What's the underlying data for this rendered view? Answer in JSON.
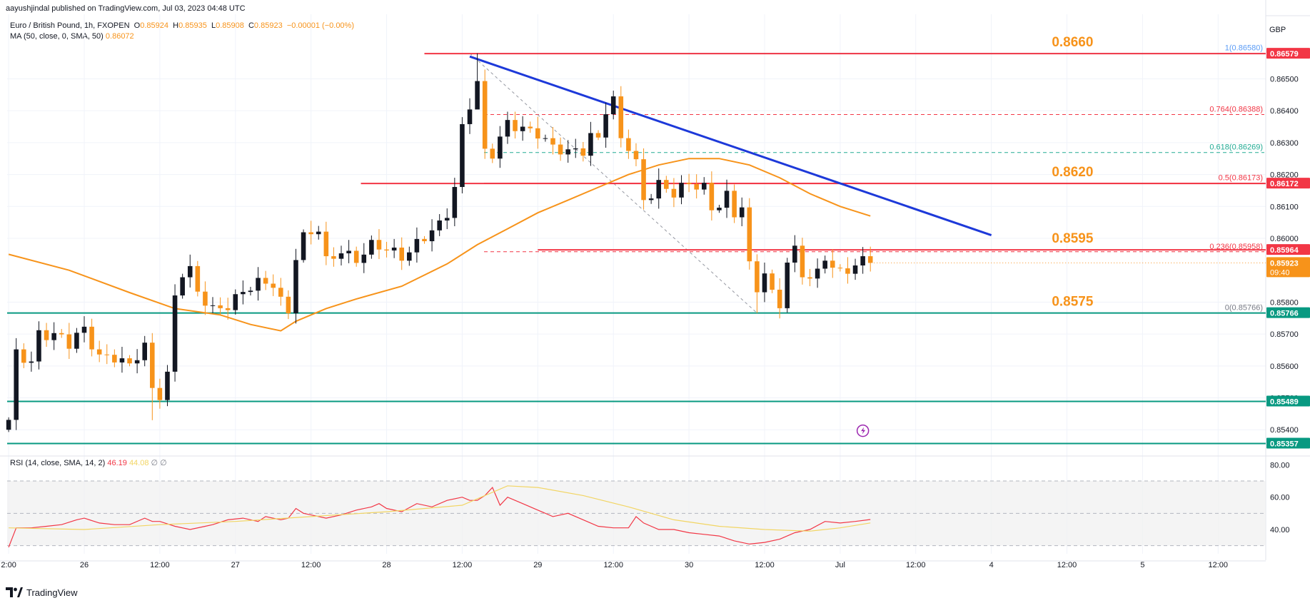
{
  "header": {
    "publisher": "aayushjindal published on TradingView.com, Jul 03, 2023 04:48 UTC",
    "symbol_line": "Euro / British Pound, 1h, FXOPEN",
    "ohlc": {
      "o_label": "O",
      "o": "0.85924",
      "h_label": "H",
      "h": "0.85935",
      "l_label": "L",
      "l": "0.85908",
      "c_label": "C",
      "c": "0.85923",
      "chg": "−0.00001 (−0.00%)"
    },
    "ma_label": "MA (50, close, 0, SMA, 50)",
    "ma_value": "0.86072",
    "rsi_label": "RSI (14, close, SMA, 14, 2)",
    "rsi_value": "46.19",
    "rsi_ma_value": "44.08",
    "rsi_extra": "∅  ∅"
  },
  "currency": "GBP",
  "watermark": "TradingView",
  "colors": {
    "up": "#131722",
    "down": "#f7931a",
    "ma": "#f7931a",
    "support": "#089981",
    "resistance": "#f23645",
    "trendline": "#1d39d9",
    "level_text": "#f7931a",
    "rsi": "#f23645",
    "rsi_ma": "#f2d563"
  },
  "chart_data": [
    {
      "type": "candlestick",
      "title": "Euro / British Pound, 1h, FXOPEN",
      "y_axis_side": "right",
      "ylim": [
        0.8532,
        0.8668
      ],
      "y_ticks": [
        "0.86500",
        "0.86400",
        "0.86300",
        "0.86200",
        "0.86100",
        "0.86000",
        "0.85800",
        "0.85700",
        "0.85600",
        "0.85500",
        "0.85400"
      ],
      "y_tick_values": [
        0.865,
        0.864,
        0.863,
        0.862,
        0.861,
        0.86,
        0.858,
        0.857,
        0.856,
        0.855,
        0.854
      ],
      "x_ticks": [
        {
          "label": "2:00",
          "t": 0
        },
        {
          "label": "26",
          "t": 10
        },
        {
          "label": "12:00",
          "t": 20
        },
        {
          "label": "27",
          "t": 30
        },
        {
          "label": "12:00",
          "t": 40
        },
        {
          "label": "28",
          "t": 50
        },
        {
          "label": "12:00",
          "t": 60
        },
        {
          "label": "29",
          "t": 70
        },
        {
          "label": "12:00",
          "t": 80
        },
        {
          "label": "30",
          "t": 90
        },
        {
          "label": "12:00",
          "t": 100
        },
        {
          "label": "Jul",
          "t": 110
        },
        {
          "label": "12:00",
          "t": 120
        },
        {
          "label": "4",
          "t": 130
        },
        {
          "label": "12:00",
          "t": 140
        },
        {
          "label": "5",
          "t": 150
        },
        {
          "label": "12:00",
          "t": 160
        }
      ],
      "x_range": [
        -0.2,
        166.3
      ],
      "candles": [],
      "ma50": [
        [
          0,
          0.8595
        ],
        [
          8,
          0.859
        ],
        [
          16,
          0.8583
        ],
        [
          22,
          0.8578
        ],
        [
          28,
          0.8576
        ],
        [
          32,
          0.8573
        ],
        [
          36,
          0.8571
        ],
        [
          38,
          0.8574
        ],
        [
          42,
          0.8578
        ],
        [
          46,
          0.8581
        ],
        [
          52,
          0.8585
        ],
        [
          58,
          0.8592
        ],
        [
          62,
          0.8598
        ],
        [
          66,
          0.8603
        ],
        [
          70,
          0.8608
        ],
        [
          74,
          0.8612
        ],
        [
          78,
          0.8616
        ],
        [
          82,
          0.862
        ],
        [
          86,
          0.8623
        ],
        [
          90,
          0.8625
        ],
        [
          94,
          0.8625
        ],
        [
          98,
          0.8623
        ],
        [
          102,
          0.8619
        ],
        [
          106,
          0.8614
        ],
        [
          110,
          0.861
        ],
        [
          114,
          0.8607
        ]
      ],
      "ma50_value": "0.86072",
      "horizontal_lines": [
        {
          "price": 0.86579,
          "kind": "resistance",
          "x_start": 55,
          "label": "0.8660"
        },
        {
          "price": 0.86172,
          "kind": "resistance",
          "x_start": 46.6,
          "label": "0.8620"
        },
        {
          "price": 0.85964,
          "kind": "resistance",
          "x_start": 70,
          "label": "0.8595"
        },
        {
          "price": 0.85766,
          "kind": "support",
          "x_start": -0.2,
          "label": "0.8575"
        },
        {
          "price": 0.85489,
          "kind": "support",
          "x_start": -0.2,
          "label": ""
        },
        {
          "price": 0.85357,
          "kind": "support",
          "x_start": -0.2,
          "label": ""
        }
      ],
      "trendline": [
        [
          61,
          0.8657
        ],
        [
          130,
          0.8601
        ]
      ],
      "fib_diagonal": [
        [
          61,
          0.8658
        ],
        [
          99,
          0.85766
        ]
      ],
      "fib_levels": [
        {
          "ratio": "1",
          "value": "0.86580",
          "price": 0.8658,
          "color": "#5b9cf6",
          "dashed": false
        },
        {
          "ratio": "0.764",
          "value": "0.86388",
          "price": 0.86388,
          "color": "#f23645",
          "dashed": true
        },
        {
          "ratio": "0.618",
          "value": "0.86269",
          "price": 0.86269,
          "color": "#22ab94",
          "dashed": true
        },
        {
          "ratio": "0.5",
          "value": "0.86173",
          "price": 0.86173,
          "color": "#f23645",
          "dashed": false
        },
        {
          "ratio": "0.236",
          "value": "0.85958",
          "price": 0.85958,
          "color": "#f23645",
          "dashed": true
        },
        {
          "ratio": "0",
          "value": "0.85766",
          "price": 0.85766,
          "color": "#787b86",
          "dashed": false
        }
      ],
      "price_labels": [
        {
          "text": "0.86579",
          "price": 0.86579,
          "bg": "#f23645"
        },
        {
          "text": "0.86172",
          "price": 0.86172,
          "bg": "#f23645"
        },
        {
          "text": "0.85964",
          "price": 0.85964,
          "bg": "#f23645"
        },
        {
          "text": "0.85923",
          "price": 0.85923,
          "bg": "#f7931a",
          "sub": "09:40"
        },
        {
          "text": "0.85766",
          "price": 0.85766,
          "bg": "#089981"
        },
        {
          "text": "0.85489",
          "price": 0.85489,
          "bg": "#089981"
        },
        {
          "text": "0.85357",
          "price": 0.85357,
          "bg": "#089981"
        }
      ],
      "last_price": 0.85923,
      "countdown": "09:40"
    },
    {
      "type": "line",
      "title": "RSI (14, close, SMA, 14, 2)",
      "ylim": [
        25,
        85
      ],
      "y_ticks": [
        "80.00",
        "60.00",
        "40.00"
      ],
      "y_tick_values": [
        80,
        60,
        40
      ],
      "bands": [
        70,
        50,
        30
      ],
      "series": [
        {
          "name": "RSI",
          "values": [
            [
              0,
              29
            ],
            [
              1,
              41
            ],
            [
              3,
              41
            ],
            [
              5,
              42
            ],
            [
              7,
              43
            ],
            [
              9,
              46
            ],
            [
              10,
              47
            ],
            [
              12,
              44
            ],
            [
              14,
              43
            ],
            [
              16,
              43
            ],
            [
              18,
              47
            ],
            [
              19,
              45
            ],
            [
              20,
              45
            ],
            [
              22,
              42
            ],
            [
              24,
              40
            ],
            [
              26,
              42
            ],
            [
              27,
              43
            ],
            [
              29,
              46
            ],
            [
              31,
              47
            ],
            [
              33,
              45
            ],
            [
              34,
              48
            ],
            [
              36,
              46
            ],
            [
              37,
              47
            ],
            [
              38,
              53
            ],
            [
              39,
              50
            ],
            [
              40,
              49
            ],
            [
              42,
              47
            ],
            [
              44,
              49
            ],
            [
              46,
              52
            ],
            [
              48,
              54
            ],
            [
              49,
              56
            ],
            [
              50,
              53
            ],
            [
              52,
              51
            ],
            [
              54,
              56
            ],
            [
              56,
              54
            ],
            [
              58,
              58
            ],
            [
              60,
              60
            ],
            [
              61,
              58
            ],
            [
              62,
              58
            ],
            [
              63,
              61
            ],
            [
              64,
              66
            ],
            [
              65,
              55
            ],
            [
              66,
              60
            ],
            [
              68,
              56
            ],
            [
              70,
              52
            ],
            [
              72,
              48
            ],
            [
              74,
              50
            ],
            [
              76,
              46
            ],
            [
              78,
              42
            ],
            [
              80,
              41
            ],
            [
              82,
              41
            ],
            [
              83,
              48
            ],
            [
              84,
              44
            ],
            [
              86,
              40
            ],
            [
              88,
              40
            ],
            [
              90,
              38
            ],
            [
              92,
              37
            ],
            [
              94,
              36
            ],
            [
              96,
              33
            ],
            [
              98,
              31
            ],
            [
              100,
              32
            ],
            [
              102,
              34
            ],
            [
              104,
              38
            ],
            [
              106,
              40
            ],
            [
              108,
              45
            ],
            [
              110,
              44
            ],
            [
              112,
              45
            ],
            [
              114,
              46.19
            ]
          ]
        },
        {
          "name": "RSI-based MA",
          "values": [
            [
              0,
              41
            ],
            [
              10,
              40
            ],
            [
              20,
              43
            ],
            [
              30,
              45
            ],
            [
              40,
              48
            ],
            [
              50,
              51
            ],
            [
              60,
              55
            ],
            [
              66,
              67
            ],
            [
              70,
              66
            ],
            [
              76,
              61
            ],
            [
              82,
              54
            ],
            [
              88,
              46
            ],
            [
              94,
              42
            ],
            [
              100,
              40
            ],
            [
              106,
              39
            ],
            [
              110,
              41
            ],
            [
              114,
              44.08
            ]
          ]
        }
      ]
    }
  ]
}
